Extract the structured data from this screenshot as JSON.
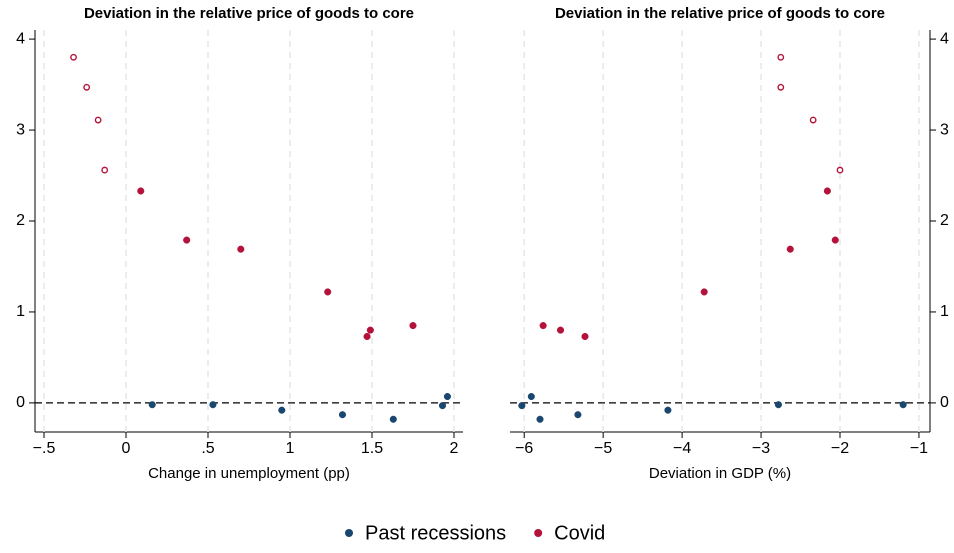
{
  "chart_data": [
    {
      "type": "scatter",
      "title": "Deviation in the relative price of goods to core",
      "x_label": "Change in unemployment (pp)",
      "xlim": [
        -0.555,
        2.055
      ],
      "ylim": [
        -0.32,
        4.1
      ],
      "y_axis_side": "left",
      "x_grid": true,
      "reference_line": 0,
      "xticks": [
        {
          "value": -0.5,
          "label": "−.5"
        },
        0,
        {
          "value": 0.5,
          "label": ".5"
        },
        1,
        1.5,
        2
      ],
      "yticks": [
        0,
        1,
        2,
        3,
        4
      ],
      "series": [
        {
          "color": "#1a476f",
          "marker": "circle",
          "x": [
            0.16,
            0.53,
            0.95,
            1.32,
            1.63,
            1.93,
            1.96
          ],
          "values": [
            -0.02,
            -0.02,
            -0.08,
            -0.13,
            -0.18,
            -0.03,
            0.07
          ]
        },
        {
          "color": "#b5123b",
          "marker": "circle",
          "x": [
            0.09,
            0.37,
            0.7,
            1.23,
            1.47,
            1.49,
            1.75
          ],
          "values": [
            2.33,
            1.79,
            1.69,
            1.22,
            0.73,
            0.8,
            0.85
          ]
        },
        {
          "color": "#b5123b",
          "marker": "hollow-circle",
          "x": [
            -0.32,
            -0.24,
            -0.17,
            -0.13
          ],
          "values": [
            3.8,
            3.47,
            3.11,
            2.56
          ]
        }
      ]
    },
    {
      "type": "scatter",
      "title": "Deviation in the relative price of goods to core",
      "x_label": "Deviation in GDP (%)",
      "xlim": [
        -6.18,
        -0.86
      ],
      "ylim": [
        -0.32,
        4.1
      ],
      "y_axis_side": "right",
      "x_grid": true,
      "reference_line": 0,
      "xticks": [
        {
          "value": -6,
          "label": "−6"
        },
        {
          "value": -5,
          "label": "−5"
        },
        {
          "value": -4,
          "label": "−4"
        },
        {
          "value": -3,
          "label": "−3"
        },
        {
          "value": -2,
          "label": "−2"
        },
        {
          "value": -1,
          "label": "−1"
        }
      ],
      "yticks": [
        0,
        1,
        2,
        3,
        4
      ],
      "series": [
        {
          "color": "#1a476f",
          "marker": "circle",
          "x": [
            -6.03,
            -5.91,
            -5.8,
            -5.32,
            -4.18,
            -2.78,
            -1.2
          ],
          "values": [
            -0.03,
            0.07,
            -0.18,
            -0.13,
            -0.08,
            -0.02,
            -0.02
          ]
        },
        {
          "color": "#b5123b",
          "marker": "circle",
          "x": [
            -5.76,
            -5.54,
            -5.23,
            -3.72,
            -2.63,
            -2.16,
            -2.06
          ],
          "values": [
            0.85,
            0.8,
            0.73,
            1.22,
            1.69,
            2.33,
            1.79
          ]
        },
        {
          "color": "#b5123b",
          "marker": "hollow-circle",
          "x": [
            -2.75,
            -2.75,
            -2.34,
            -2.0
          ],
          "values": [
            3.8,
            3.47,
            3.11,
            2.56
          ]
        }
      ]
    }
  ],
  "legend": {
    "position": "bottom",
    "items": [
      {
        "name": "Past recessions",
        "color": "#1a476f"
      },
      {
        "name": "Covid",
        "color": "#b5123b"
      }
    ]
  }
}
